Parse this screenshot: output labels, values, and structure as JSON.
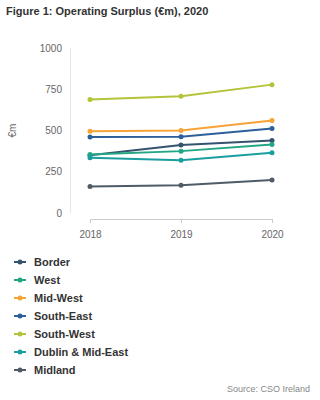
{
  "chart_data": {
    "type": "line",
    "title": "Figure 1: Operating Surplus (€m), 2020",
    "y_label": "€m",
    "source": "Source: CSO Ireland",
    "x": [
      2018,
      2019,
      2020
    ],
    "xlim": [
      2018,
      2020
    ],
    "xticks": [
      2018,
      2019,
      2020
    ],
    "ylim": [
      0,
      1000
    ],
    "yticks": [
      0,
      250,
      500,
      750,
      1000
    ],
    "grid": false,
    "marker": "circle",
    "series": [
      {
        "name": "Border",
        "color": "#34536f",
        "values": [
          350,
          412,
          440
        ]
      },
      {
        "name": "West",
        "color": "#22a683",
        "values": [
          355,
          375,
          415
        ]
      },
      {
        "name": "Mid-West",
        "color": "#f7a336",
        "values": [
          495,
          500,
          560
        ]
      },
      {
        "name": "South-East",
        "color": "#2d5f9a",
        "values": [
          460,
          462,
          512
        ]
      },
      {
        "name": "South-West",
        "color": "#b4c43a",
        "values": [
          688,
          708,
          778
        ]
      },
      {
        "name": "Dublin & Mid-East",
        "color": "#1a9ea0",
        "values": [
          335,
          320,
          365
        ]
      },
      {
        "name": "Midland",
        "color": "#4f5b66",
        "values": [
          160,
          168,
          200
        ]
      }
    ]
  }
}
